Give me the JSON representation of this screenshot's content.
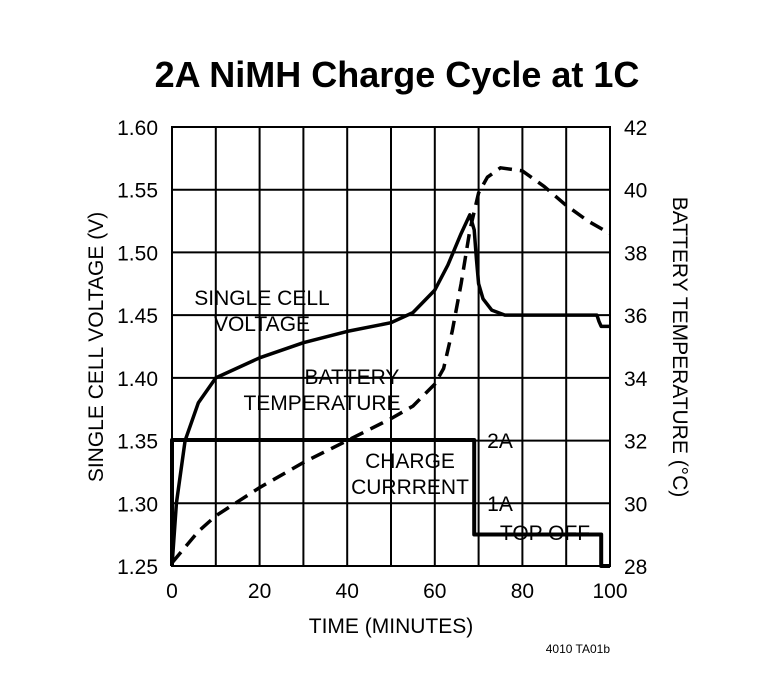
{
  "chart_data": {
    "type": "line",
    "title": "2A NiMH Charge Cycle at 1C",
    "xlabel": "TIME (MINUTES)",
    "ylabel_left": "SINGLE CELL VOLTAGE (V)",
    "ylabel_right": "BATTERY TEMPERATURE (°C)",
    "xlim": [
      0,
      100
    ],
    "ylim_left": [
      1.25,
      1.6
    ],
    "ylim_right": [
      28,
      42
    ],
    "x_ticks": [
      "0",
      "20",
      "40",
      "60",
      "80",
      "100"
    ],
    "y_left_ticks": [
      "1.25",
      "1.30",
      "1.35",
      "1.40",
      "1.45",
      "1.50",
      "1.55",
      "1.60"
    ],
    "y_right_ticks": [
      "28",
      "30",
      "32",
      "34",
      "36",
      "38",
      "40",
      "42"
    ],
    "grid": true,
    "series": [
      {
        "name": "SINGLE CELL VOLTAGE",
        "axis": "left",
        "style": "solid",
        "x": [
          0,
          1,
          3,
          6,
          10,
          20,
          30,
          40,
          50,
          55,
          60,
          63,
          66,
          68,
          69,
          69.5,
          70,
          71,
          73,
          76,
          80,
          90,
          97,
          97.5,
          98,
          99,
          100
        ],
        "y": [
          1.25,
          1.3,
          1.35,
          1.38,
          1.4,
          1.416,
          1.428,
          1.437,
          1.444,
          1.452,
          1.47,
          1.49,
          1.515,
          1.53,
          1.518,
          1.495,
          1.475,
          1.463,
          1.454,
          1.45,
          1.45,
          1.45,
          1.45,
          1.445,
          1.441,
          1.441,
          1.441
        ]
      },
      {
        "name": "BATTERY TEMPERATURE",
        "axis": "right",
        "style": "dashed",
        "x": [
          0,
          3,
          6,
          10,
          20,
          30,
          40,
          50,
          55,
          60,
          62,
          64,
          66,
          68,
          70,
          72,
          75,
          80,
          85,
          90,
          95,
          100
        ],
        "y": [
          28.1,
          28.6,
          29.1,
          29.6,
          30.5,
          31.3,
          32.0,
          32.7,
          33.1,
          33.8,
          34.3,
          35.5,
          37.0,
          38.7,
          39.9,
          40.4,
          40.7,
          40.6,
          40.1,
          39.5,
          39.0,
          38.6
        ]
      },
      {
        "name": "CHARGE CURRENT",
        "axis": "current",
        "style": "solid-thick",
        "x": [
          0,
          0,
          69,
          69,
          98,
          98,
          100
        ],
        "y": [
          0,
          2,
          2,
          0.5,
          0.5,
          0,
          0
        ]
      }
    ],
    "current_ticks": [
      "2A",
      "1A"
    ],
    "annotations": {
      "voltage_line1": "SINGLE CELL",
      "voltage_line2": "VOLTAGE",
      "temperature_line1": "BATTERY",
      "temperature_line2": "TEMPERATURE",
      "current_line1": "CHARGE",
      "current_line2": "CURRRENT",
      "top_off": "TOP OFF"
    },
    "figure_id": "4010 TA01b"
  }
}
